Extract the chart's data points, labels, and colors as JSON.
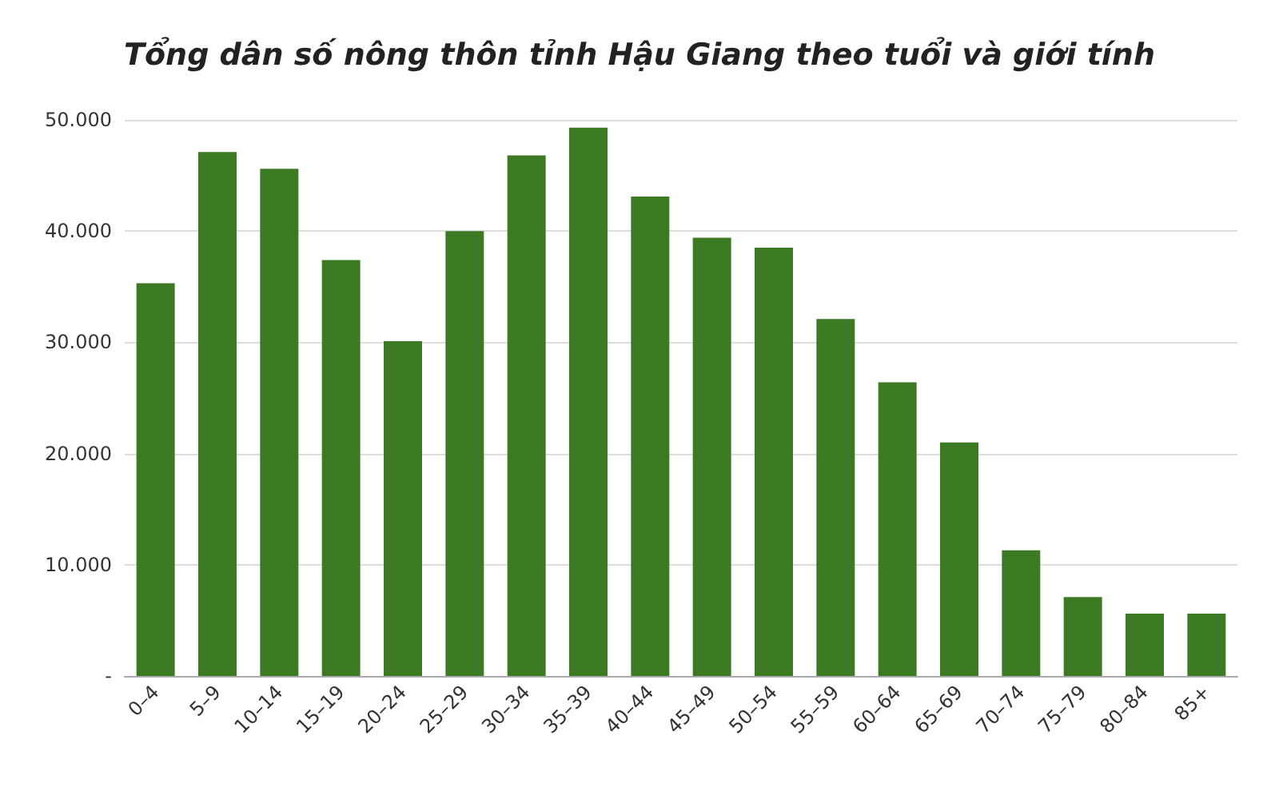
{
  "chart_data": {
    "type": "bar",
    "title": "Tổng dân số nông thôn tỉnh Hậu Giang theo tuổi và giới tính",
    "categories": [
      "0–4",
      "5–9",
      "10–14",
      "15–19",
      "20–24",
      "25–29",
      "30–34",
      "35–39",
      "40–44",
      "45–49",
      "50–54",
      "55–59",
      "60–64",
      "65–69",
      "70–74",
      "75–79",
      "80–84",
      "85+"
    ],
    "values": [
      35300,
      47100,
      45600,
      37400,
      30100,
      40000,
      46800,
      49300,
      43100,
      39400,
      38500,
      32100,
      26400,
      21000,
      11300,
      7100,
      5600,
      5600
    ],
    "color": "#3b7a23",
    "ylim": [
      0,
      50000
    ],
    "yticks": [
      {
        "value": 0,
        "label": "-"
      },
      {
        "value": 10000,
        "label": "10.000"
      },
      {
        "value": 20000,
        "label": "20.000"
      },
      {
        "value": 30000,
        "label": "30.000"
      },
      {
        "value": 40000,
        "label": "40.000"
      },
      {
        "value": 50000,
        "label": "50.000"
      }
    ],
    "grid": "y"
  }
}
